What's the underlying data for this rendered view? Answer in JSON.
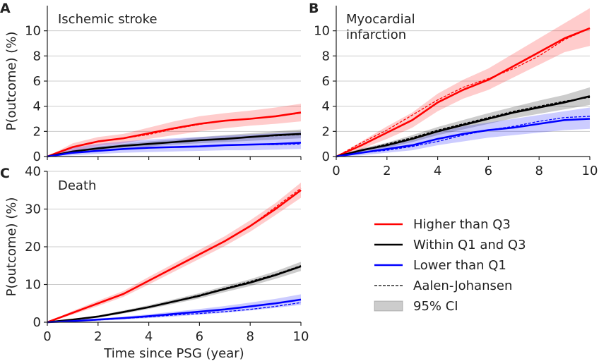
{
  "chart_data": [
    {
      "id": "A",
      "letter": "A",
      "type": "line",
      "title_lines": [
        "Ischemic stroke"
      ],
      "xlabel": "",
      "ylabel": "P(outcome) (%)",
      "xlim": [
        0,
        10
      ],
      "ylim": [
        0,
        12
      ],
      "xticks": [
        0,
        2,
        4,
        6,
        8,
        10
      ],
      "yticks": [
        0,
        2,
        4,
        6,
        8,
        10
      ],
      "show_xticklabels": false,
      "grid": "horizontal",
      "x": [
        0,
        1,
        2,
        3,
        4,
        5,
        6,
        7,
        8,
        9,
        10
      ],
      "series": [
        {
          "key": "high",
          "color": "#ff0000",
          "values": [
            0,
            0.75,
            1.2,
            1.45,
            1.85,
            2.25,
            2.6,
            2.85,
            3.0,
            3.2,
            3.5
          ],
          "aj": [
            0,
            0.75,
            1.2,
            1.45,
            1.75,
            2.2,
            2.55,
            2.85,
            3.0,
            3.2,
            3.45
          ],
          "lower": [
            0,
            0.45,
            0.85,
            1.05,
            1.4,
            1.7,
            2.0,
            2.25,
            2.45,
            2.6,
            2.8
          ],
          "upper": [
            0,
            1.05,
            1.55,
            1.8,
            2.3,
            2.8,
            3.2,
            3.45,
            3.65,
            3.9,
            4.2
          ]
        },
        {
          "key": "within",
          "color": "#000000",
          "values": [
            0,
            0.4,
            0.65,
            0.85,
            1.0,
            1.15,
            1.3,
            1.4,
            1.55,
            1.7,
            1.8
          ],
          "aj": [
            0,
            0.4,
            0.65,
            0.85,
            1.0,
            1.15,
            1.3,
            1.4,
            1.55,
            1.65,
            1.75
          ],
          "lower": [
            0,
            0.3,
            0.5,
            0.7,
            0.8,
            0.95,
            1.05,
            1.15,
            1.25,
            1.35,
            1.45
          ],
          "upper": [
            0,
            0.5,
            0.8,
            1.0,
            1.2,
            1.35,
            1.55,
            1.7,
            1.85,
            2.0,
            2.15
          ]
        },
        {
          "key": "lower",
          "color": "#0000ff",
          "values": [
            0,
            0.3,
            0.45,
            0.6,
            0.7,
            0.75,
            0.8,
            0.9,
            0.95,
            1.0,
            1.1
          ],
          "aj": [
            0,
            0.3,
            0.45,
            0.6,
            0.7,
            0.75,
            0.8,
            0.9,
            0.95,
            0.95,
            1.0
          ],
          "lower": [
            0,
            0.1,
            0.2,
            0.3,
            0.35,
            0.4,
            0.45,
            0.5,
            0.5,
            0.55,
            0.6
          ],
          "upper": [
            0,
            0.7,
            1.0,
            1.2,
            1.35,
            1.45,
            1.55,
            1.65,
            1.75,
            1.85,
            1.95
          ]
        }
      ]
    },
    {
      "id": "B",
      "letter": "B",
      "type": "line",
      "title_lines": [
        "Myocardial",
        "infarction"
      ],
      "xlabel": "",
      "ylabel": "",
      "xlim": [
        0,
        10
      ],
      "ylim": [
        0,
        12
      ],
      "xticks": [
        0,
        2,
        4,
        6,
        8,
        10
      ],
      "yticks": [
        0,
        2,
        4,
        6,
        8,
        10
      ],
      "show_xticklabels": true,
      "grid": "horizontal",
      "x": [
        0,
        1,
        2,
        3,
        4,
        5,
        6,
        7,
        8,
        9,
        10
      ],
      "series": [
        {
          "key": "high",
          "color": "#ff0000",
          "values": [
            0,
            0.9,
            1.9,
            2.9,
            4.3,
            5.3,
            6.1,
            7.2,
            8.3,
            9.4,
            10.2
          ],
          "aj": [
            0,
            1.1,
            2.1,
            3.3,
            4.5,
            5.5,
            6.2,
            7.0,
            8.0,
            9.3,
            10.2
          ],
          "lower": [
            0,
            0.6,
            1.4,
            2.3,
            3.6,
            4.6,
            5.3,
            6.3,
            7.3,
            8.3,
            8.8
          ],
          "upper": [
            0,
            1.2,
            2.4,
            3.5,
            5.0,
            6.1,
            7.0,
            8.2,
            9.4,
            10.6,
            11.8
          ]
        },
        {
          "key": "within",
          "color": "#000000",
          "values": [
            0,
            0.5,
            0.9,
            1.4,
            2.0,
            2.5,
            3.0,
            3.5,
            3.9,
            4.3,
            4.8
          ],
          "aj": [
            0,
            0.5,
            1.0,
            1.5,
            2.1,
            2.6,
            3.1,
            3.6,
            4.0,
            4.4,
            4.7
          ],
          "lower": [
            0,
            0.35,
            0.7,
            1.15,
            1.7,
            2.15,
            2.6,
            3.05,
            3.4,
            3.75,
            4.1
          ],
          "upper": [
            0,
            0.65,
            1.1,
            1.7,
            2.35,
            2.9,
            3.45,
            3.95,
            4.45,
            4.9,
            5.5
          ]
        },
        {
          "key": "lower",
          "color": "#0000ff",
          "values": [
            0,
            0.3,
            0.6,
            0.9,
            1.4,
            1.8,
            2.1,
            2.3,
            2.6,
            2.9,
            3.0
          ],
          "aj": [
            0,
            0.3,
            0.5,
            0.8,
            1.2,
            1.7,
            2.1,
            2.4,
            2.8,
            3.1,
            3.2
          ],
          "lower": [
            0,
            0.1,
            0.3,
            0.5,
            0.9,
            1.2,
            1.5,
            1.7,
            1.9,
            2.1,
            2.2
          ],
          "upper": [
            0,
            0.5,
            0.9,
            1.3,
            1.9,
            2.4,
            2.7,
            3.0,
            3.3,
            3.6,
            3.9
          ]
        }
      ]
    },
    {
      "id": "C",
      "letter": "C",
      "type": "line",
      "title_lines": [
        "Death"
      ],
      "xlabel": "Time since PSG (year)",
      "ylabel": "P(outcome) (%)",
      "xlim": [
        0,
        10
      ],
      "ylim": [
        0,
        40
      ],
      "xticks": [
        0,
        2,
        4,
        6,
        8,
        10
      ],
      "yticks": [
        0,
        10,
        20,
        30,
        40
      ],
      "show_xticklabels": true,
      "grid": "horizontal",
      "x": [
        0,
        1,
        2,
        3,
        4,
        5,
        6,
        7,
        8,
        9,
        10
      ],
      "series": [
        {
          "key": "high",
          "color": "#ff0000",
          "values": [
            0,
            2.5,
            5.0,
            7.5,
            11.0,
            14.5,
            18.0,
            21.5,
            25.5,
            30.0,
            35.0
          ],
          "aj": [
            0,
            2.5,
            5.0,
            7.5,
            11.0,
            14.5,
            18.0,
            21.5,
            25.5,
            30.5,
            35.5
          ],
          "lower": [
            0,
            2.0,
            4.3,
            6.7,
            10.0,
            13.4,
            16.8,
            20.2,
            24.0,
            28.4,
            33.0
          ],
          "upper": [
            0,
            3.0,
            5.7,
            8.3,
            12.0,
            15.6,
            19.2,
            22.8,
            27.0,
            31.6,
            37.0
          ]
        },
        {
          "key": "within",
          "color": "#000000",
          "values": [
            0,
            0.7,
            1.5,
            2.7,
            4.0,
            5.5,
            7.0,
            8.8,
            10.5,
            12.5,
            14.8
          ],
          "aj": [
            0,
            0.7,
            1.5,
            2.8,
            4.1,
            5.6,
            7.2,
            9.0,
            10.8,
            12.7,
            15.0
          ],
          "lower": [
            0,
            0.5,
            1.2,
            2.3,
            3.5,
            4.9,
            6.3,
            8.0,
            9.6,
            11.5,
            13.6
          ],
          "upper": [
            0,
            0.9,
            1.8,
            3.1,
            4.5,
            6.1,
            7.7,
            9.6,
            11.4,
            13.5,
            16.0
          ]
        },
        {
          "key": "lower",
          "color": "#0000ff",
          "values": [
            0,
            0.3,
            0.7,
            1.1,
            1.6,
            2.2,
            2.8,
            3.4,
            4.2,
            5.0,
            6.0
          ],
          "aj": [
            0,
            0.3,
            0.6,
            1.0,
            1.4,
            1.9,
            2.3,
            2.8,
            3.4,
            4.2,
            5.2
          ],
          "lower": [
            0,
            0.1,
            0.4,
            0.7,
            1.1,
            1.5,
            2.0,
            2.5,
            3.1,
            3.8,
            4.6
          ],
          "upper": [
            0,
            0.5,
            1.0,
            1.5,
            2.1,
            2.8,
            3.5,
            4.3,
            5.2,
            6.2,
            7.4
          ]
        }
      ]
    }
  ],
  "legend": {
    "placement": "lower-right",
    "entries": [
      {
        "key": "high",
        "label": "Higher than Q3",
        "kind": "line",
        "color": "#ff0000"
      },
      {
        "key": "within",
        "label": "Within Q1 and Q3",
        "kind": "line",
        "color": "#000000"
      },
      {
        "key": "lower",
        "label": "Lower than Q1",
        "kind": "line",
        "color": "#0000ff"
      },
      {
        "key": "aj",
        "label": "Aalen-Johansen",
        "kind": "dashed",
        "color": "#000000"
      },
      {
        "key": "ci",
        "label": "95% CI",
        "kind": "patch",
        "color": "#808080"
      }
    ]
  }
}
